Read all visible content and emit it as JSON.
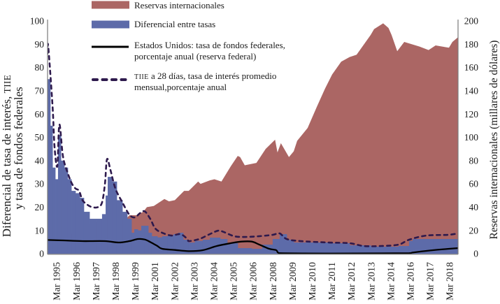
{
  "chart_data": {
    "type": "area",
    "title": "",
    "xlabel": "",
    "ylabel": "Diferencial de tasa de interés, TIIE y tasa de fondos federales",
    "ylabel_lines": [
      "Diferencial de tasa de interés, TIIE",
      "y tasa de fondos federales"
    ],
    "y2label": "Reservas internacionales (millares de dólares)",
    "ylim": [
      0,
      100
    ],
    "y2lim": [
      0,
      200
    ],
    "yticks": [
      0,
      10,
      20,
      30,
      40,
      50,
      60,
      70,
      80,
      90,
      100
    ],
    "y2ticks": [
      0,
      20,
      40,
      60,
      80,
      100,
      120,
      140,
      160,
      180,
      200
    ],
    "xlim": [
      1995.0,
      2018.96
    ],
    "xtick_labels": [
      "Mar 1995",
      "Mar 1996",
      "Mar 1997",
      "Mar 1998",
      "Mar 1999",
      "Mar 2001",
      "Mar 2002",
      "Mar 2003",
      "Mar 2004",
      "Mar 2005",
      "Mar 2006",
      "Mar 2008",
      "Mar 2009",
      "Mar 2010",
      "Mar 2011",
      "Mar 2012",
      "Mar 2013",
      "Mar 2014",
      "Mar 2016",
      "Mar 2017",
      "Mar 2018"
    ],
    "grid": false,
    "legend_position": "top-center",
    "series": [
      {
        "name": "Reservas internacionales",
        "legend_lines": [
          "Reservas internacionales"
        ],
        "type": "area",
        "axis": "right",
        "style": "solid",
        "color": "#ab6664",
        "points": [
          [
            1995.0,
            6
          ],
          [
            1995.49,
            12
          ],
          [
            1996.1,
            16
          ],
          [
            1996.71,
            18
          ],
          [
            1997.33,
            24
          ],
          [
            1997.94,
            28
          ],
          [
            1998.55,
            30
          ],
          [
            1999.16,
            30
          ],
          [
            1999.65,
            31
          ],
          [
            1999.78,
            33
          ],
          [
            2000.18,
            33
          ],
          [
            2000.59,
            36
          ],
          [
            2000.8,
            40
          ],
          [
            2001.2,
            41
          ],
          [
            2001.82,
            47
          ],
          [
            2002.09,
            45
          ],
          [
            2002.43,
            46
          ],
          [
            2002.97,
            54
          ],
          [
            2003.24,
            54
          ],
          [
            2003.79,
            62
          ],
          [
            2003.93,
            60
          ],
          [
            2004.47,
            63
          ],
          [
            2004.74,
            64
          ],
          [
            2005.15,
            62
          ],
          [
            2005.69,
            75
          ],
          [
            2006.1,
            84
          ],
          [
            2006.24,
            83
          ],
          [
            2006.51,
            76
          ],
          [
            2007.19,
            78
          ],
          [
            2007.73,
            90
          ],
          [
            2008.28,
            98
          ],
          [
            2008.42,
            87
          ],
          [
            2008.62,
            95
          ],
          [
            2009.09,
            83
          ],
          [
            2009.37,
            88
          ],
          [
            2009.57,
            97
          ],
          [
            2010.18,
            108
          ],
          [
            2010.71,
            126
          ],
          [
            2011.2,
            142
          ],
          [
            2011.61,
            154
          ],
          [
            2012.14,
            165
          ],
          [
            2012.63,
            169
          ],
          [
            2013.04,
            171
          ],
          [
            2013.86,
            188
          ],
          [
            2014.06,
            193
          ],
          [
            2014.59,
            198
          ],
          [
            2014.9,
            194
          ],
          [
            2015.08,
            188
          ],
          [
            2015.41,
            174
          ],
          [
            2015.82,
            182
          ],
          [
            2016.71,
            178
          ],
          [
            2017.24,
            175
          ],
          [
            2017.65,
            179
          ],
          [
            2018.43,
            177
          ],
          [
            2018.63,
            182
          ],
          [
            2018.96,
            186
          ]
        ]
      },
      {
        "name": "Diferencial entre tasas",
        "legend_lines": [
          "Diferencial entre tasas"
        ],
        "type": "bar",
        "axis": "left",
        "style": "solid",
        "color": "#5d6ba9",
        "points": [
          [
            1995.0,
            75
          ],
          [
            1995.16,
            55
          ],
          [
            1995.29,
            37
          ],
          [
            1995.45,
            32
          ],
          [
            1995.61,
            51
          ],
          [
            1995.78,
            40
          ],
          [
            1995.98,
            37
          ],
          [
            1996.18,
            32
          ],
          [
            1996.39,
            27
          ],
          [
            1996.63,
            26
          ],
          [
            1996.88,
            24
          ],
          [
            1997.12,
            18
          ],
          [
            1997.45,
            15
          ],
          [
            1997.86,
            15
          ],
          [
            1998.18,
            17
          ],
          [
            1998.39,
            25
          ],
          [
            1998.51,
            33
          ],
          [
            1998.76,
            31
          ],
          [
            1999.04,
            23
          ],
          [
            1999.37,
            18
          ],
          [
            1999.65,
            15
          ],
          [
            1999.9,
            9
          ],
          [
            2000.06,
            10.5
          ],
          [
            2000.27,
            10
          ],
          [
            2000.47,
            12
          ],
          [
            2000.67,
            12
          ],
          [
            2000.88,
            9
          ],
          [
            2001.08,
            7.5
          ],
          [
            2001.41,
            7
          ],
          [
            2001.69,
            7.5
          ],
          [
            2002.02,
            7.8
          ],
          [
            2002.35,
            8.4
          ],
          [
            2002.63,
            9
          ],
          [
            2002.92,
            6
          ],
          [
            2003.24,
            4.8
          ],
          [
            2003.6,
            5.5
          ],
          [
            2004.06,
            6
          ],
          [
            2004.47,
            6.9
          ],
          [
            2005.08,
            6.3
          ],
          [
            2005.49,
            4.5
          ],
          [
            2006.1,
            2.4
          ],
          [
            2006.92,
            2.1
          ],
          [
            2007.53,
            3.9
          ],
          [
            2008.14,
            6.3
          ],
          [
            2008.55,
            8.4
          ],
          [
            2008.96,
            6.0
          ],
          [
            2009.37,
            4.8
          ],
          [
            2011.41,
            4.5
          ],
          [
            2012.63,
            3.6
          ],
          [
            2013.86,
            3.0
          ],
          [
            2015.49,
            3.3
          ],
          [
            2016.1,
            5.5
          ],
          [
            2016.31,
            6.3
          ],
          [
            2017.53,
            6.3
          ],
          [
            2018.96,
            6.0
          ]
        ]
      },
      {
        "name": "Estados Unidos: tasa de fondos federales, porcentaje anual (reserva federal)",
        "legend_lines": [
          "Estados Unidos: tasa de fondos federales,",
          "porcentaje anual (reserva federal)"
        ],
        "type": "line",
        "axis": "left",
        "style": "solid",
        "color": "#000000",
        "points": [
          [
            1995.0,
            5.9
          ],
          [
            1995.9,
            5.7
          ],
          [
            1997.04,
            5.4
          ],
          [
            1998.35,
            5.4
          ],
          [
            1999.16,
            4.8
          ],
          [
            1999.78,
            5.4
          ],
          [
            2000.27,
            6.3
          ],
          [
            2000.67,
            6.1
          ],
          [
            2001.0,
            5.0
          ],
          [
            2001.41,
            3.3
          ],
          [
            2001.69,
            2.1
          ],
          [
            2002.43,
            1.6
          ],
          [
            2003.24,
            1.1
          ],
          [
            2004.06,
            1.5
          ],
          [
            2004.88,
            3.3
          ],
          [
            2005.69,
            4.5
          ],
          [
            2006.31,
            5.2
          ],
          [
            2006.92,
            5.2
          ],
          [
            2007.33,
            4.0
          ],
          [
            2007.94,
            2.1
          ],
          [
            2008.35,
            1.5
          ],
          [
            2008.55,
            0.2
          ],
          [
            2016.1,
            0.2
          ],
          [
            2016.31,
            0.5
          ],
          [
            2017.12,
            1.2
          ],
          [
            2017.94,
            1.8
          ],
          [
            2018.96,
            2.4
          ]
        ]
      },
      {
        "name": "TIIE a 28 días, tasa de interés promedio mensual,porcentaje anual",
        "legend_lines": [
          "TIIE a 28 días, tasa de interés promedio",
          "mensual,porcentaje anual"
        ],
        "type": "line",
        "axis": "left",
        "style": "dashed",
        "color": "#2e1a4d",
        "points": [
          [
            1995.0,
            86
          ],
          [
            1995.04,
            89
          ],
          [
            1995.29,
            63.6
          ],
          [
            1995.41,
            45.7
          ],
          [
            1995.57,
            37.6
          ],
          [
            1995.69,
            55.5
          ],
          [
            1995.9,
            41.8
          ],
          [
            1996.18,
            34.6
          ],
          [
            1996.43,
            30
          ],
          [
            1996.63,
            28
          ],
          [
            1996.84,
            27
          ],
          [
            1997.04,
            23
          ],
          [
            1997.33,
            21
          ],
          [
            1997.61,
            20
          ],
          [
            1997.94,
            20
          ],
          [
            1998.18,
            22
          ],
          [
            1998.35,
            30
          ],
          [
            1998.47,
            40.6
          ],
          [
            1998.67,
            36
          ],
          [
            1998.96,
            28
          ],
          [
            1999.37,
            22
          ],
          [
            1999.78,
            16.7
          ],
          [
            2000.1,
            15.6
          ],
          [
            2000.39,
            17.4
          ],
          [
            2000.67,
            18.2
          ],
          [
            2001.0,
            14.9
          ],
          [
            2001.29,
            10.8
          ],
          [
            2001.69,
            9
          ],
          [
            2002.22,
            7.8
          ],
          [
            2002.76,
            8.4
          ],
          [
            2003.16,
            6.3
          ],
          [
            2003.24,
            5.4
          ],
          [
            2003.86,
            6.3
          ],
          [
            2004.47,
            8.4
          ],
          [
            2004.96,
            9.9
          ],
          [
            2005.29,
            9.3
          ],
          [
            2005.9,
            7.5
          ],
          [
            2006.51,
            7.2
          ],
          [
            2007.33,
            7.5
          ],
          [
            2008.14,
            8.1
          ],
          [
            2008.55,
            8.7
          ],
          [
            2008.96,
            6.3
          ],
          [
            2009.78,
            5.4
          ],
          [
            2011.41,
            4.8
          ],
          [
            2012.63,
            4.5
          ],
          [
            2013.45,
            3.3
          ],
          [
            2014.47,
            3.3
          ],
          [
            2015.49,
            3.9
          ],
          [
            2016.1,
            6.0
          ],
          [
            2017.12,
            7.8
          ],
          [
            2018.35,
            8.1
          ],
          [
            2018.96,
            8.7
          ]
        ]
      }
    ]
  }
}
